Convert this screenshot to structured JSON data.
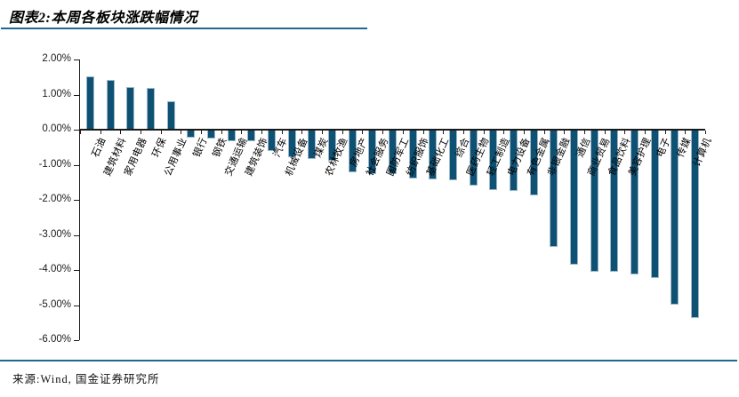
{
  "header": {
    "title": "图表2:本周各板块涨跌幅情况"
  },
  "footer": {
    "source": "来源:Wind, 国金证券研究所"
  },
  "chart_data": {
    "type": "bar",
    "title": "本周各板块涨跌幅情况",
    "categories": [
      "石油",
      "建筑材料",
      "家用电器",
      "环保",
      "公用事业",
      "银行",
      "钢铁",
      "交通运输",
      "建筑装饰",
      "汽车",
      "机械设备",
      "煤炭",
      "农林牧渔",
      "房地产",
      "社会服务",
      "国防军工",
      "纺织服饰",
      "基础化工",
      "综合",
      "医药生物",
      "轻工制造",
      "电力设备",
      "有色金属",
      "非银金融",
      "通信",
      "商业贸易",
      "食品饮料",
      "美容护理",
      "电子",
      "传媒",
      "计算机"
    ],
    "values": [
      1.51,
      1.41,
      1.22,
      1.18,
      0.8,
      -0.24,
      -0.26,
      -0.32,
      -0.33,
      -0.62,
      -0.78,
      -0.84,
      -0.88,
      -1.22,
      -1.26,
      -1.27,
      -1.39,
      -1.42,
      -1.44,
      -1.6,
      -1.72,
      -1.75,
      -1.88,
      -3.33,
      -3.85,
      -4.05,
      -4.06,
      -4.13,
      -4.22,
      -4.98,
      -5.36
    ],
    "unit": "%",
    "xlabel": "",
    "ylabel": "",
    "ylim": [
      -6,
      2
    ],
    "ytick_labels": [
      "2.00%",
      "1.00%",
      "0.00%",
      "-1.00%",
      "-2.00%",
      "-3.00%",
      "-4.00%",
      "-5.00%",
      "-6.00%"
    ],
    "grid": false,
    "legend_position": "none",
    "bar_color": "#0E5173",
    "bar_border_color": "#9CB8CB"
  }
}
